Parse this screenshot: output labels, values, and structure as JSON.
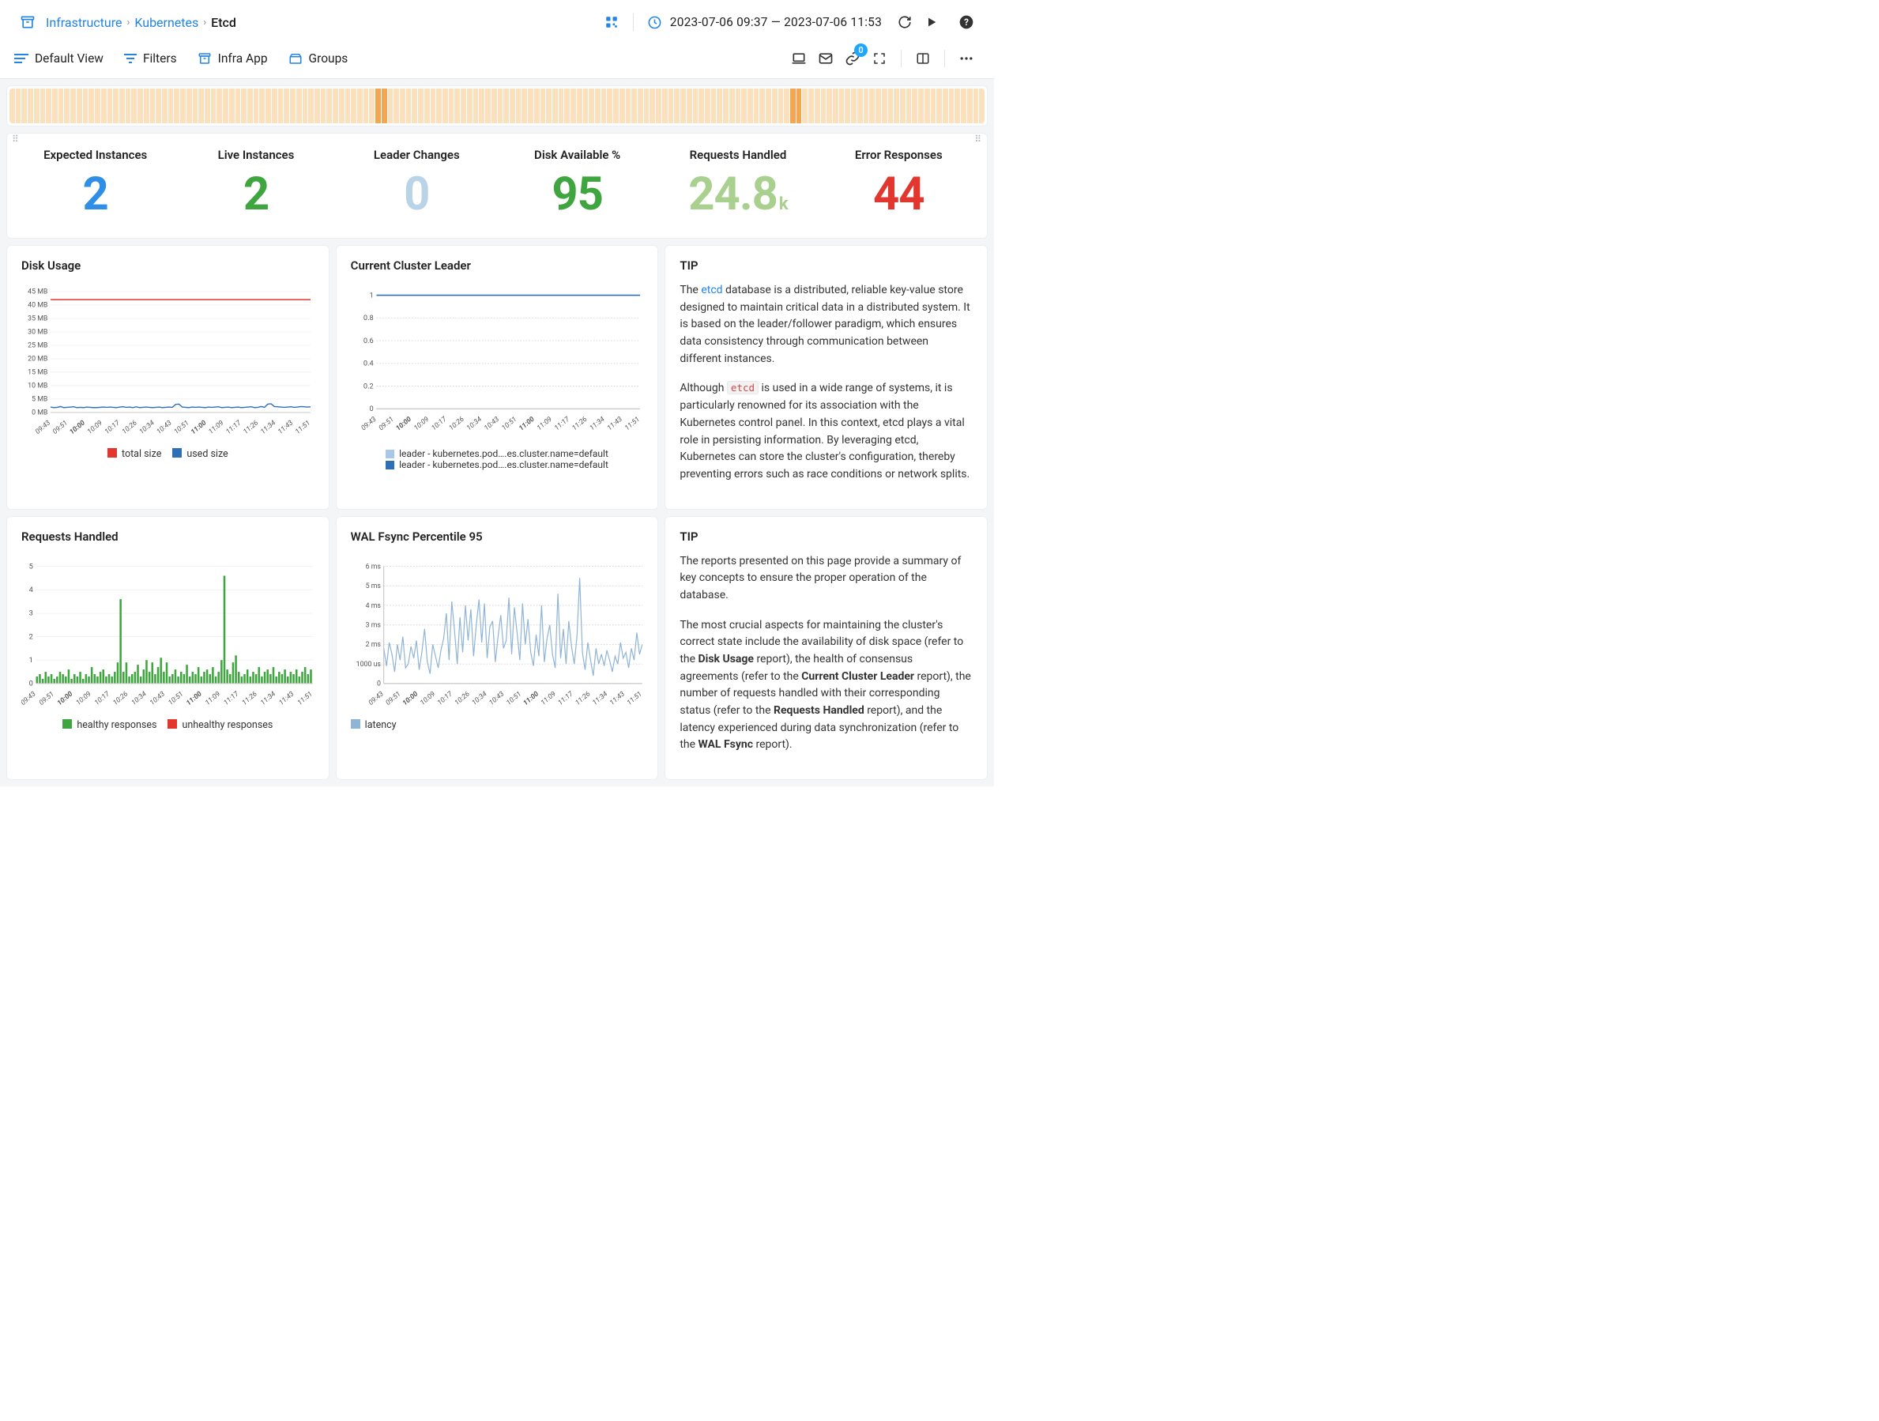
{
  "breadcrumb": {
    "items": [
      "Infrastructure",
      "Kubernetes",
      "Etcd"
    ]
  },
  "header": {
    "time_range": "2023-07-06 09:37 — 2023-07-06 11:53",
    "badge_count": "0"
  },
  "toolbar": {
    "default_view": "Default View",
    "filters": "Filters",
    "infra_app": "Infra App",
    "groups": "Groups"
  },
  "heat_strip": {
    "count": 160,
    "base_color": "#fbe0bd",
    "highlight_color": "#f2a651",
    "highlights": [
      60,
      61,
      128,
      129
    ]
  },
  "kpis": [
    {
      "title": "Expected Instances",
      "value": "2",
      "suffix": "",
      "color": "#2f8fe6"
    },
    {
      "title": "Live Instances",
      "value": "2",
      "suffix": "",
      "color": "#3fa63f"
    },
    {
      "title": "Leader Changes",
      "value": "0",
      "suffix": "",
      "color": "#b9d4e6"
    },
    {
      "title": "Disk Available %",
      "value": "95",
      "suffix": "",
      "color": "#3fa63f"
    },
    {
      "title": "Requests Handled",
      "value": "24.8",
      "suffix": "k",
      "color": "#a9d08e"
    },
    {
      "title": "Error Responses",
      "value": "44",
      "suffix": "",
      "color": "#e1372f"
    }
  ],
  "xticks": [
    "09:43",
    "09:51",
    "10:00",
    "10:09",
    "10:17",
    "10:26",
    "10:34",
    "10:43",
    "10:51",
    "11:00",
    "11:09",
    "11:17",
    "11:26",
    "11:34",
    "11:43",
    "11:51"
  ],
  "xbold": [
    "10:00",
    "11:00"
  ],
  "disk_usage": {
    "title": "Disk Usage",
    "y_max": 45,
    "y_step": 5,
    "y_unit": "MB",
    "total_color": "#e1372f",
    "used_color": "#2f6fb5",
    "total_value": 42,
    "used_values": [
      2.0,
      1.8,
      1.9,
      2.2,
      1.8,
      1.9,
      2.0,
      2.1,
      1.8,
      1.9,
      1.8,
      2.0,
      1.9,
      1.8,
      1.8,
      1.9,
      2.0,
      1.9,
      2.0,
      1.9,
      1.8,
      2.0,
      2.1,
      1.9,
      2.0,
      1.8,
      2.1,
      1.8,
      1.9,
      2.0,
      1.9,
      1.8,
      1.9,
      2.0,
      1.8,
      1.9,
      2.0,
      1.9,
      3.0,
      3.1,
      2.0,
      1.9,
      1.8,
      2.0,
      1.9,
      2.0,
      1.9,
      1.8,
      2.0,
      1.9,
      2.0,
      2.1,
      1.8,
      1.9,
      2.0,
      1.8,
      1.9,
      2.0,
      1.8,
      1.9,
      2.0,
      2.1,
      1.8,
      1.9,
      2.2,
      1.9,
      3.1,
      3.2,
      2.2,
      2.1,
      2.0,
      1.9,
      2.0,
      2.1,
      1.9,
      2.0,
      2.2,
      2.1,
      2.0,
      2.1
    ],
    "legend": [
      {
        "label": "total size",
        "color": "#e1372f"
      },
      {
        "label": "used size",
        "color": "#2f6fb5"
      }
    ]
  },
  "cluster_leader": {
    "title": "Current Cluster Leader",
    "y_max": 1,
    "y_step": 0.2,
    "line1_color": "#a9c7e6",
    "line2_color": "#2f6fb5",
    "legend": [
      {
        "label": "leader - kubernetes.pod….es.cluster.name=default",
        "color": "#a9c7e6"
      },
      {
        "label": "leader - kubernetes.pod….es.cluster.name=default",
        "color": "#2f6fb5"
      }
    ]
  },
  "tip1": {
    "title": "TIP",
    "p1_a": "The ",
    "p1_link": "etcd",
    "p1_b": " database is a distributed, reliable key-value store designed to maintain critical data in a distributed system. It is based on the leader/follower paradigm, which ensures data consistency through communication between different instances.",
    "p2_a": "Although ",
    "p2_code": "etcd",
    "p2_b": " is used in a wide range of systems, it is particularly renowned for its association with the Kubernetes control panel. In this context, etcd plays a vital role in persisting information. By leveraging etcd, Kubernetes can store the cluster's configuration, thereby preventing errors such as race conditions or network splits."
  },
  "requests_handled": {
    "title": "Requests Handled",
    "y_max": 5,
    "y_step": 1,
    "bar_color": "#3fa63f",
    "values": [
      0.3,
      0.4,
      0.2,
      0.5,
      0.3,
      0.4,
      0.2,
      0.3,
      0.5,
      0.4,
      0.3,
      0.6,
      0.2,
      0.4,
      0.3,
      0.5,
      0.2,
      0.4,
      0.3,
      0.7,
      0.4,
      0.3,
      0.5,
      0.6,
      0.3,
      0.4,
      0.3,
      0.5,
      0.9,
      3.6,
      0.5,
      0.9,
      0.3,
      0.4,
      0.5,
      0.8,
      0.3,
      0.6,
      1.0,
      0.5,
      0.9,
      0.4,
      0.7,
      1.1,
      0.5,
      0.9,
      0.3,
      0.4,
      0.6,
      0.3,
      0.5,
      0.4,
      0.8,
      0.3,
      0.5,
      0.4,
      0.7,
      0.3,
      0.5,
      0.6,
      0.4,
      0.7,
      0.3,
      0.5,
      1.0,
      4.6,
      0.6,
      0.4,
      0.9,
      1.2,
      0.5,
      0.3,
      0.4,
      0.6,
      0.3,
      0.5,
      0.4,
      0.7,
      0.3,
      0.5,
      0.6,
      0.4,
      0.7,
      0.3,
      0.5,
      0.4,
      0.6,
      0.3,
      0.5,
      0.4,
      0.6,
      0.3,
      0.5,
      0.7,
      0.4,
      0.6
    ],
    "legend": [
      {
        "label": "healthy responses",
        "color": "#3fa63f"
      },
      {
        "label": "unhealthy responses",
        "color": "#e1372f"
      }
    ]
  },
  "wal_fsync": {
    "title": "WAL Fsync Percentile 95",
    "y_ticks": [
      {
        "v": 0,
        "label": "0"
      },
      {
        "v": 1,
        "label": "1000 us"
      },
      {
        "v": 2,
        "label": "2 ms"
      },
      {
        "v": 3,
        "label": "3 ms"
      },
      {
        "v": 4,
        "label": "4 ms"
      },
      {
        "v": 5,
        "label": "5 ms"
      },
      {
        "v": 6,
        "label": "6 ms"
      }
    ],
    "y_max": 6,
    "line_color": "#8fb4d6",
    "values": [
      1.8,
      0.9,
      2.1,
      1.5,
      0.6,
      2.0,
      1.2,
      2.4,
      0.8,
      1.0,
      1.9,
      1.3,
      2.2,
      0.7,
      1.6,
      2.8,
      1.1,
      0.5,
      2.0,
      1.4,
      0.8,
      1.7,
      2.3,
      3.6,
      1.2,
      4.2,
      2.7,
      1.0,
      3.4,
      1.6,
      4.0,
      2.2,
      3.8,
      1.4,
      3.0,
      4.3,
      2.1,
      4.1,
      1.3,
      2.9,
      3.2,
      1.1,
      2.4,
      3.5,
      1.8,
      2.2,
      4.4,
      1.5,
      3.9,
      2.6,
      1.2,
      4.1,
      2.0,
      3.3,
      1.6,
      0.9,
      2.5,
      1.4,
      4.0,
      1.1,
      2.3,
      3.0,
      1.5,
      0.8,
      4.6,
      1.3,
      2.8,
      1.0,
      3.2,
      1.9,
      1.0,
      2.4,
      5.4,
      1.6,
      0.7,
      2.1,
      1.2,
      0.4,
      1.8,
      1.0,
      1.5,
      0.9,
      1.7,
      1.2,
      0.6,
      1.4,
      1.0,
      2.1,
      1.3,
      1.6,
      0.8,
      1.8,
      1.2,
      2.6,
      1.5,
      2.0
    ],
    "legend": [
      {
        "label": "latency",
        "color": "#8fb4d6"
      }
    ]
  },
  "tip2": {
    "title": "TIP",
    "p1": "The reports presented on this page provide a summary of key concepts to ensure the proper operation of the database.",
    "p2_a": "The most crucial aspects for maintaining the cluster's correct state include the availability of disk space (refer to the ",
    "p2_b1": "Disk Usage",
    "p2_c": " report), the health of consensus agreements (refer to the ",
    "p2_b2": "Current Cluster Leader",
    "p2_d": " report), the number of requests handled with their corresponding status (refer to the ",
    "p2_b3": "Requests Handled",
    "p2_e": " report), and the latency experienced during data synchronization (refer to the ",
    "p2_b4": "WAL Fsync",
    "p2_f": " report)."
  }
}
